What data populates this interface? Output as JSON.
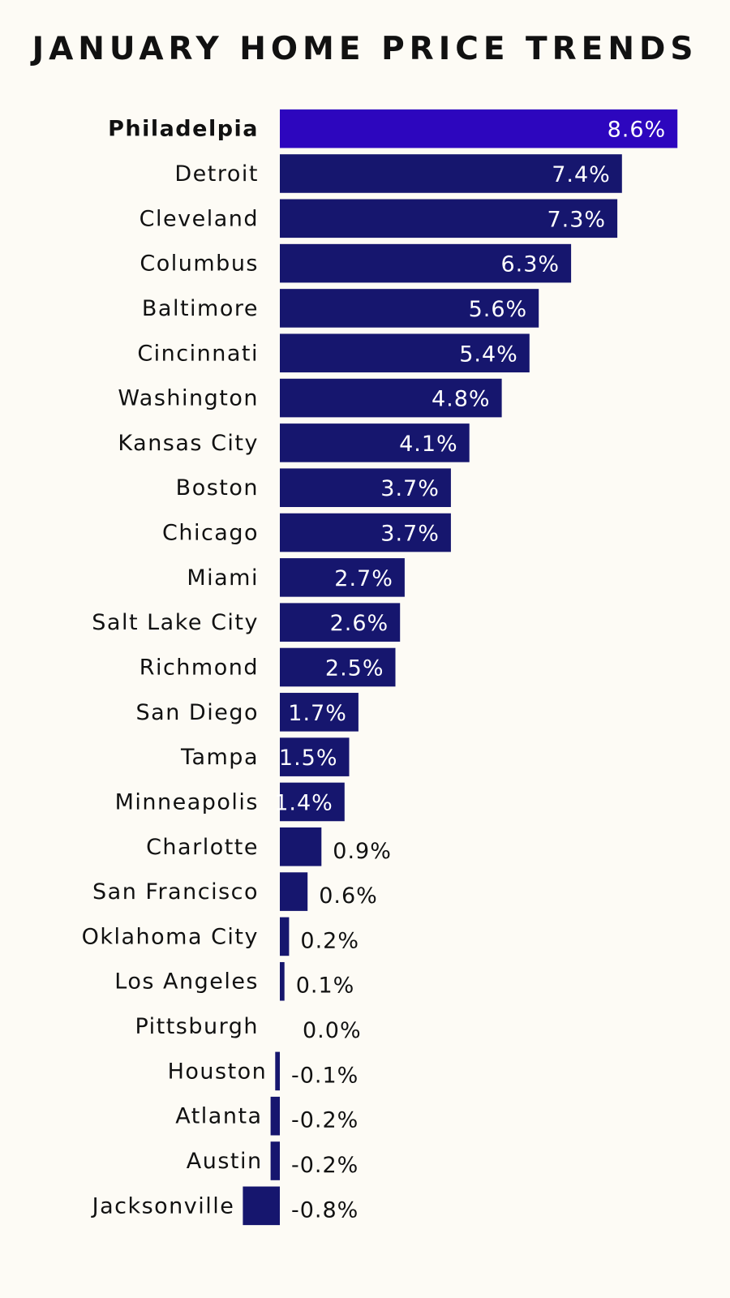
{
  "chart_data": {
    "type": "bar",
    "orientation": "horizontal",
    "title": "JANUARY HOME PRICE TRENDS",
    "categories": [
      "Philadelpia",
      "Detroit",
      "Cleveland",
      "Columbus",
      "Baltimore",
      "Cincinnati",
      "Washington",
      "Kansas City",
      "Boston",
      "Chicago",
      "Miami",
      "Salt Lake City",
      "Richmond",
      "San Diego",
      "Tampa",
      "Minneapolis",
      "Charlotte",
      "San Francisco",
      "Oklahoma City",
      "Los Angeles",
      "Pittsburgh",
      "Houston",
      "Atlanta",
      "Austin",
      "Jacksonville"
    ],
    "values": [
      8.6,
      7.4,
      7.3,
      6.3,
      5.6,
      5.4,
      4.8,
      4.1,
      3.7,
      3.7,
      2.7,
      2.6,
      2.5,
      1.7,
      1.5,
      1.4,
      0.9,
      0.6,
      0.2,
      0.1,
      0.0,
      -0.1,
      -0.2,
      -0.2,
      -0.8
    ],
    "labels": [
      "8.6%",
      "7.4%",
      "7.3%",
      "6.3%",
      "5.6%",
      "5.4%",
      "4.8%",
      "4.1%",
      "3.7%",
      "3.7%",
      "2.7%",
      "2.6%",
      "2.5%",
      "1.7%",
      "1.5%",
      "1.4%",
      "0.9%",
      "0.6%",
      "0.2%",
      "0.1%",
      "0.0%",
      "-0.1%",
      "-0.2%",
      "-0.2%",
      "-0.8%"
    ],
    "highlight": "Philadelpia",
    "colors": {
      "bar": "#16166e",
      "highlight": "#2d06be",
      "text": "#111111",
      "label_inside": "#ffffff"
    },
    "legend": "none",
    "grid": false
  }
}
